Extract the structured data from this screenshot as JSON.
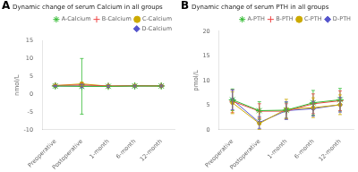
{
  "chart_data": [
    {
      "type": "line",
      "title": "Dynamic change of serum Calcium in all groups",
      "ylabel": "nmol/L",
      "annotations": [
        "A"
      ],
      "categories": [
        "Preoperative",
        "Postoperative",
        "1-month",
        "6-month",
        "12-month"
      ],
      "series": [
        {
          "name": "A-Calcium",
          "color": "#33bb33",
          "marker": "star",
          "values": [
            2.3,
            2.2,
            2.2,
            2.3,
            2.3
          ],
          "errors": [
            0.15,
            7.8,
            0.25,
            0.25,
            0.25
          ]
        },
        {
          "name": "B-Calcium",
          "color": "#ee4444",
          "marker": "plus",
          "values": [
            2.45,
            2.6,
            2.3,
            2.4,
            2.35
          ],
          "errors": [
            0.15,
            0.5,
            0.25,
            0.25,
            0.25
          ]
        },
        {
          "name": "C-Calcium",
          "color": "#ccaa00",
          "marker": "point",
          "values": [
            2.4,
            2.9,
            2.25,
            2.35,
            2.3
          ],
          "errors": [
            0.15,
            0.5,
            0.25,
            0.25,
            0.25
          ]
        },
        {
          "name": "D-Calcium",
          "color": "#5555cc",
          "marker": "diamond",
          "values": [
            2.3,
            2.3,
            2.2,
            2.3,
            2.3
          ],
          "errors": [
            0.15,
            0.5,
            0.25,
            0.25,
            0.25
          ]
        }
      ],
      "ylim": [
        -10,
        15
      ],
      "yticks": [
        -10,
        -5,
        0,
        5,
        10,
        15
      ],
      "grid": false,
      "legend": "upper right"
    },
    {
      "type": "line",
      "title": "Dynamic change of serum PTH in all groups",
      "ylabel": "pmol/L",
      "annotations": [
        "B"
      ],
      "categories": [
        "Preoperative",
        "Postoperative",
        "1-month",
        "6-month",
        "12-month"
      ],
      "series": [
        {
          "name": "A-PTH",
          "color": "#33bb33",
          "marker": "star",
          "values": [
            6.1,
            3.9,
            4.0,
            5.5,
            6.1
          ],
          "errors": [
            2.2,
            1.8,
            1.6,
            2.5,
            2.3
          ]
        },
        {
          "name": "B-PTH",
          "color": "#ee4444",
          "marker": "plus",
          "values": [
            5.8,
            3.8,
            3.8,
            5.3,
            5.9
          ],
          "errors": [
            2.3,
            1.5,
            1.5,
            2.0,
            2.0
          ]
        },
        {
          "name": "C-PTH",
          "color": "#ccaa00",
          "marker": "point",
          "values": [
            5.5,
            1.3,
            4.2,
            4.5,
            5.1
          ],
          "errors": [
            2.2,
            1.2,
            2.0,
            2.0,
            2.0
          ]
        },
        {
          "name": "D-PTH",
          "color": "#5555cc",
          "marker": "diamond",
          "values": [
            6.1,
            1.5,
            3.9,
            4.3,
            5.1
          ],
          "errors": [
            2.0,
            1.2,
            1.8,
            1.5,
            1.5
          ]
        }
      ],
      "ylim": [
        0,
        20
      ],
      "yticks": [
        0,
        5,
        10,
        15,
        20
      ],
      "grid": false,
      "legend": "upper right"
    }
  ]
}
